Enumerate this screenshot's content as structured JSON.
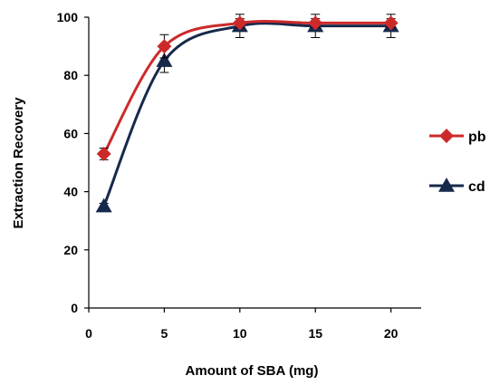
{
  "chart_data": {
    "type": "line",
    "xlabel": "Amount of  SBA (mg)",
    "ylabel": "Extraction Recovery",
    "xlim": [
      0,
      22
    ],
    "ylim": [
      0,
      100
    ],
    "xticks": [
      0,
      5,
      10,
      15,
      20
    ],
    "yticks": [
      0,
      20,
      40,
      60,
      80,
      100
    ],
    "legend_position": "right",
    "grid": false,
    "series": [
      {
        "name": "pb",
        "color": "#cc2a2a",
        "marker": "diamond",
        "x": [
          1,
          5,
          10,
          15,
          20
        ],
        "y": [
          53,
          90,
          98,
          98,
          98
        ],
        "error": [
          2,
          4,
          1.5,
          1.5,
          1.5
        ]
      },
      {
        "name": "cd",
        "color": "#17294a",
        "marker": "triangle",
        "x": [
          1,
          5,
          10,
          15,
          20
        ],
        "y": [
          35,
          85,
          97,
          97,
          97
        ],
        "error": [
          1,
          4,
          4,
          4,
          4
        ]
      }
    ]
  }
}
